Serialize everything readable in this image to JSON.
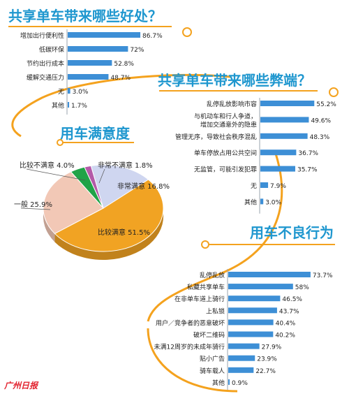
{
  "colors": {
    "title": "#1f97cf",
    "bar": "#3d8fd6",
    "swirl": "#f4a21e",
    "pie_satisfied": "#f1a323",
    "pie_very_satisfied": "#cfd6f0",
    "pie_dissatisfied": "#21a348",
    "pie_very_dissatisfied": "#b45aa8",
    "pie_neutral": "#f2c8b6",
    "watermark": "#e2232f"
  },
  "chart_data": [
    {
      "type": "bar",
      "title": "共享单车带来哪些好处？",
      "categories": [
        "增加出行便利性",
        "低碳环保",
        "节约出行成本",
        "缓解交通压力",
        "无",
        "其他"
      ],
      "values": [
        86.7,
        72,
        52.8,
        48.7,
        3.0,
        1.7
      ],
      "value_labels": [
        "86.7%",
        "72%",
        "52.8%",
        "48.7%",
        "3.0%",
        "1.7%"
      ]
    },
    {
      "type": "bar",
      "title": "共享单车带来哪些弊端？",
      "categories": [
        [
          "乱停乱放影响市容"
        ],
        [
          "与机动车和行人争道，",
          "增加交通意外的隐患"
        ],
        [
          "管理无序，导致社会秩序混乱"
        ],
        [
          "单车停放占用公共空间"
        ],
        [
          "无监管，可能引发犯罪"
        ],
        [
          "无"
        ],
        [
          "其他"
        ]
      ],
      "values": [
        55.2,
        49.6,
        48.3,
        36.7,
        35.7,
        7.9,
        3.0
      ],
      "value_labels": [
        "55.2%",
        "49.6%",
        "48.3%",
        "36.7%",
        "35.7%",
        "7.9%",
        "3.0%"
      ]
    },
    {
      "type": "pie",
      "title": "用车满意度",
      "slices": [
        {
          "label": "比较满意",
          "value": 51.5,
          "text": "比较满意  51.5%",
          "color_key": "pie_satisfied"
        },
        {
          "label": "非常满意",
          "value": 16.8,
          "text": "非常满意  16.8%",
          "color_key": "pie_very_satisfied"
        },
        {
          "label": "非常不满意",
          "value": 1.8,
          "text": "非常不满意  1.8%",
          "color_key": "pie_very_dissatisfied"
        },
        {
          "label": "比较不满意",
          "value": 4.0,
          "text": "比较不满意  4.0%",
          "color_key": "pie_dissatisfied"
        },
        {
          "label": "一般",
          "value": 25.9,
          "text": "一般  25.9%",
          "color_key": "pie_neutral"
        }
      ]
    },
    {
      "type": "bar",
      "title": "用车不良行为",
      "categories": [
        "乱停乱放",
        "私藏共享单车",
        "在非单车道上骑行",
        "上私锁",
        "用户／竞争者的恶意破坏",
        "破坏二维码",
        "未满12周岁的未成年骑行",
        "贴小广告",
        "骑车载人",
        "其他"
      ],
      "values": [
        73.7,
        58,
        46.5,
        43.7,
        40.4,
        40.2,
        27.9,
        23.9,
        22.7,
        0.9
      ],
      "value_labels": [
        "73.7%",
        "58%",
        "46.5%",
        "43.7%",
        "40.4%",
        "40.2%",
        "27.9%",
        "23.9%",
        "22.7%",
        "0.9%"
      ]
    }
  ],
  "watermark": "广州日报"
}
